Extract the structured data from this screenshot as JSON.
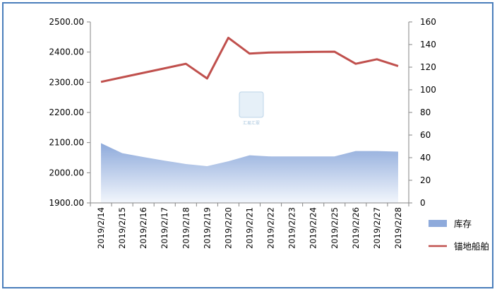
{
  "chart_data": {
    "type": "area+line",
    "title": "",
    "categories": [
      "2019/2/14",
      "2019/2/15",
      "2019/2/16",
      "2019/2/17",
      "2019/2/18",
      "2019/2/19",
      "2019/2/20",
      "2019/2/21",
      "2019/2/22",
      "2019/2/23",
      "2019/2/24",
      "2019/2/25",
      "2019/2/26",
      "2019/2/27",
      "2019/2/28"
    ],
    "left_axis": {
      "ylim": [
        1900,
        2500
      ],
      "ticks": [
        "1900.00",
        "2000.00",
        "2100.00",
        "2200.00",
        "2300.00",
        "2400.00",
        "2500.00"
      ]
    },
    "right_axis": {
      "ylim": [
        0,
        160
      ],
      "ticks": [
        "0",
        "20",
        "40",
        "60",
        "80",
        "100",
        "120",
        "140",
        "160"
      ]
    },
    "series": [
      {
        "name": "库存",
        "type": "area",
        "axis": "left",
        "color": "#8eaadb",
        "values": [
          2098,
          2065,
          2052,
          2040,
          2029,
          2022,
          2038,
          2058,
          2054,
          2054,
          2054,
          2054,
          2072,
          2072,
          2070
        ]
      },
      {
        "name": "锚地船舶",
        "type": "line",
        "axis": "right",
        "color": "#c0504d",
        "values": [
          107,
          111,
          115,
          119,
          123,
          110,
          146,
          132,
          133,
          133.2,
          133.5,
          133.7,
          123,
          127,
          121
        ]
      }
    ],
    "legend": "right",
    "grid": false
  },
  "watermark": {
    "text": "汇易汇翠",
    "icon": "seal-logo-icon"
  }
}
